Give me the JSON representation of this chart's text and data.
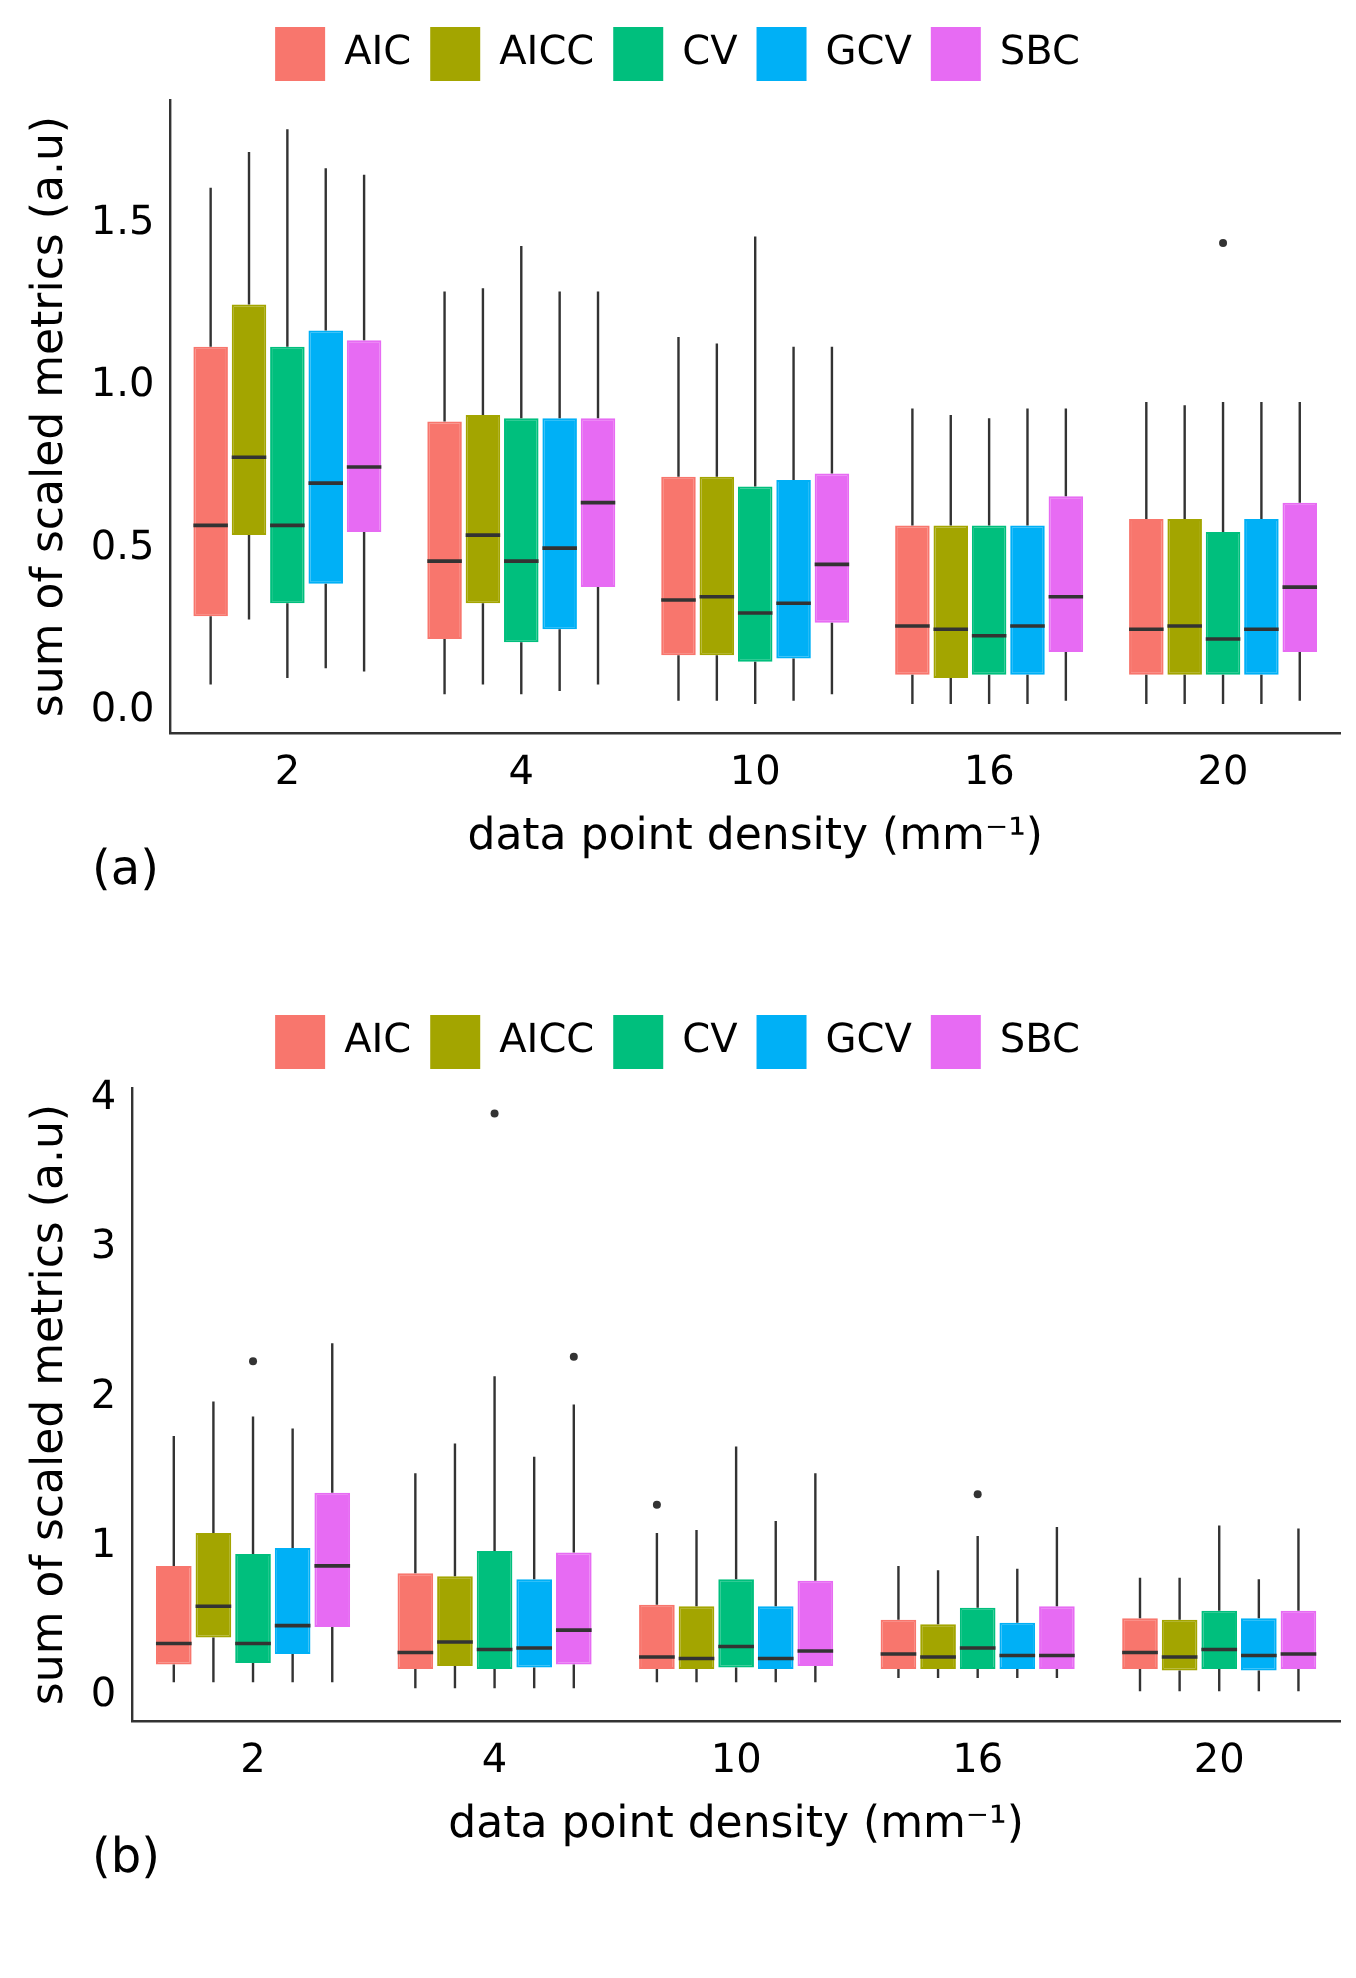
{
  "chart_data": [
    {
      "type": "box",
      "categories": [
        "2",
        "4",
        "10",
        "16",
        "20"
      ],
      "xlabel": "data point density (mm⁻¹)",
      "ylabel": "sum of scaled metrics (a.u)",
      "ylim": [
        -0.07,
        1.88
      ],
      "yticks": [
        {
          "value": 0,
          "label": "0.0"
        },
        {
          "value": 0.5,
          "label": "0.5"
        },
        {
          "value": 1,
          "label": "1.0"
        },
        {
          "value": 1.5,
          "label": "1.5"
        }
      ],
      "grid": false,
      "legend": "top",
      "annotations": [
        "(a)"
      ],
      "series": [
        {
          "name": "AIC",
          "color": "#f8766d",
          "boxes": [
            {
              "low": 0.08,
              "q1": 0.29,
              "median": 0.57,
              "q3": 1.12,
              "high": 1.61
            },
            {
              "low": 0.05,
              "q1": 0.22,
              "median": 0.46,
              "q3": 0.89,
              "high": 1.29
            },
            {
              "low": 0.03,
              "q1": 0.17,
              "median": 0.34,
              "q3": 0.72,
              "high": 1.15
            },
            {
              "low": 0.02,
              "q1": 0.11,
              "median": 0.26,
              "q3": 0.57,
              "high": 0.93
            },
            {
              "low": 0.02,
              "q1": 0.11,
              "median": 0.25,
              "q3": 0.59,
              "high": 0.95
            }
          ]
        },
        {
          "name": "AICC",
          "color": "#a3a500",
          "boxes": [
            {
              "low": 0.28,
              "q1": 0.54,
              "median": 0.78,
              "q3": 1.25,
              "high": 1.72
            },
            {
              "low": 0.08,
              "q1": 0.33,
              "median": 0.54,
              "q3": 0.91,
              "high": 1.3
            },
            {
              "low": 0.03,
              "q1": 0.17,
              "median": 0.35,
              "q3": 0.72,
              "high": 1.13
            },
            {
              "low": 0.02,
              "q1": 0.1,
              "median": 0.25,
              "q3": 0.57,
              "high": 0.91
            },
            {
              "low": 0.02,
              "q1": 0.11,
              "median": 0.26,
              "q3": 0.59,
              "high": 0.94
            }
          ]
        },
        {
          "name": "CV",
          "color": "#00bf7d",
          "boxes": [
            {
              "low": 0.1,
              "q1": 0.33,
              "median": 0.57,
              "q3": 1.12,
              "high": 1.79
            },
            {
              "low": 0.05,
              "q1": 0.21,
              "median": 0.46,
              "q3": 0.9,
              "high": 1.43
            },
            {
              "low": 0.02,
              "q1": 0.15,
              "median": 0.3,
              "q3": 0.69,
              "high": 1.46
            },
            {
              "low": 0.02,
              "q1": 0.11,
              "median": 0.23,
              "q3": 0.57,
              "high": 0.9
            },
            {
              "low": 0.02,
              "q1": 0.11,
              "median": 0.22,
              "q3": 0.55,
              "high": 0.95,
              "outliers": [
                1.44
              ]
            }
          ]
        },
        {
          "name": "GCV",
          "color": "#00b0f6",
          "boxes": [
            {
              "low": 0.13,
              "q1": 0.39,
              "median": 0.7,
              "q3": 1.17,
              "high": 1.67
            },
            {
              "low": 0.06,
              "q1": 0.25,
              "median": 0.5,
              "q3": 0.9,
              "high": 1.29
            },
            {
              "low": 0.03,
              "q1": 0.16,
              "median": 0.33,
              "q3": 0.71,
              "high": 1.12
            },
            {
              "low": 0.02,
              "q1": 0.11,
              "median": 0.26,
              "q3": 0.57,
              "high": 0.93
            },
            {
              "low": 0.02,
              "q1": 0.11,
              "median": 0.25,
              "q3": 0.59,
              "high": 0.95
            }
          ]
        },
        {
          "name": "SBC",
          "color": "#e76bf3",
          "boxes": [
            {
              "low": 0.12,
              "q1": 0.55,
              "median": 0.75,
              "q3": 1.14,
              "high": 1.65
            },
            {
              "low": 0.08,
              "q1": 0.38,
              "median": 0.64,
              "q3": 0.9,
              "high": 1.29
            },
            {
              "low": 0.05,
              "q1": 0.27,
              "median": 0.45,
              "q3": 0.73,
              "high": 1.12
            },
            {
              "low": 0.03,
              "q1": 0.18,
              "median": 0.35,
              "q3": 0.66,
              "high": 0.93
            },
            {
              "low": 0.03,
              "q1": 0.18,
              "median": 0.38,
              "q3": 0.64,
              "high": 0.95
            }
          ]
        }
      ]
    },
    {
      "type": "box",
      "categories": [
        "2",
        "4",
        "10",
        "16",
        "20"
      ],
      "xlabel": "data point density (mm⁻¹)",
      "ylabel": "sum of scaled metrics (a.u)",
      "ylim": [
        -0.17,
        4.07
      ],
      "yticks": [
        0,
        1,
        2,
        3,
        4
      ],
      "grid": false,
      "legend": "top",
      "annotations": [
        "(b)"
      ],
      "series": [
        {
          "name": "AIC",
          "color": "#f8766d",
          "boxes": [
            {
              "low": 0.09,
              "q1": 0.21,
              "median": 0.35,
              "q3": 0.87,
              "high": 1.74
            },
            {
              "low": 0.05,
              "q1": 0.18,
              "median": 0.29,
              "q3": 0.82,
              "high": 1.49
            },
            {
              "low": 0.09,
              "q1": 0.18,
              "median": 0.26,
              "q3": 0.61,
              "high": 1.09,
              "outliers": [
                1.28
              ]
            },
            {
              "low": 0.12,
              "q1": 0.18,
              "median": 0.28,
              "q3": 0.51,
              "high": 0.87
            },
            {
              "low": 0.03,
              "q1": 0.18,
              "median": 0.29,
              "q3": 0.52,
              "high": 0.79
            }
          ]
        },
        {
          "name": "AICC",
          "color": "#a3a500",
          "boxes": [
            {
              "low": 0.09,
              "q1": 0.39,
              "median": 0.6,
              "q3": 1.09,
              "high": 1.97
            },
            {
              "low": 0.05,
              "q1": 0.2,
              "median": 0.36,
              "q3": 0.8,
              "high": 1.69
            },
            {
              "low": 0.09,
              "q1": 0.18,
              "median": 0.25,
              "q3": 0.6,
              "high": 1.11
            },
            {
              "low": 0.12,
              "q1": 0.18,
              "median": 0.26,
              "q3": 0.48,
              "high": 0.84
            },
            {
              "low": 0.03,
              "q1": 0.17,
              "median": 0.26,
              "q3": 0.51,
              "high": 0.79
            }
          ]
        },
        {
          "name": "CV",
          "color": "#00bf7d",
          "boxes": [
            {
              "low": 0.09,
              "q1": 0.22,
              "median": 0.35,
              "q3": 0.95,
              "high": 1.87,
              "outliers": [
                2.24
              ]
            },
            {
              "low": 0.05,
              "q1": 0.18,
              "median": 0.31,
              "q3": 0.97,
              "high": 2.14,
              "outliers": [
                3.9
              ]
            },
            {
              "low": 0.09,
              "q1": 0.19,
              "median": 0.33,
              "q3": 0.78,
              "high": 1.67
            },
            {
              "low": 0.12,
              "q1": 0.18,
              "median": 0.32,
              "q3": 0.59,
              "high": 1.07,
              "outliers": [
                1.35
              ]
            },
            {
              "low": 0.03,
              "q1": 0.18,
              "median": 0.31,
              "q3": 0.57,
              "high": 1.14
            }
          ]
        },
        {
          "name": "GCV",
          "color": "#00b0f6",
          "boxes": [
            {
              "low": 0.09,
              "q1": 0.28,
              "median": 0.47,
              "q3": 0.99,
              "high": 1.79
            },
            {
              "low": 0.05,
              "q1": 0.19,
              "median": 0.32,
              "q3": 0.78,
              "high": 1.6
            },
            {
              "low": 0.09,
              "q1": 0.18,
              "median": 0.25,
              "q3": 0.6,
              "high": 1.17
            },
            {
              "low": 0.12,
              "q1": 0.18,
              "median": 0.27,
              "q3": 0.49,
              "high": 0.85
            },
            {
              "low": 0.03,
              "q1": 0.17,
              "median": 0.27,
              "q3": 0.52,
              "high": 0.78
            }
          ]
        },
        {
          "name": "SBC",
          "color": "#e76bf3",
          "boxes": [
            {
              "low": 0.09,
              "q1": 0.46,
              "median": 0.87,
              "q3": 1.36,
              "high": 2.36
            },
            {
              "low": 0.05,
              "q1": 0.21,
              "median": 0.44,
              "q3": 0.96,
              "high": 1.95,
              "outliers": [
                2.27
              ]
            },
            {
              "low": 0.09,
              "q1": 0.2,
              "median": 0.3,
              "q3": 0.77,
              "high": 1.49
            },
            {
              "low": 0.12,
              "q1": 0.18,
              "median": 0.27,
              "q3": 0.6,
              "high": 1.13
            },
            {
              "low": 0.03,
              "q1": 0.18,
              "median": 0.28,
              "q3": 0.57,
              "high": 1.12
            }
          ]
        }
      ]
    }
  ]
}
